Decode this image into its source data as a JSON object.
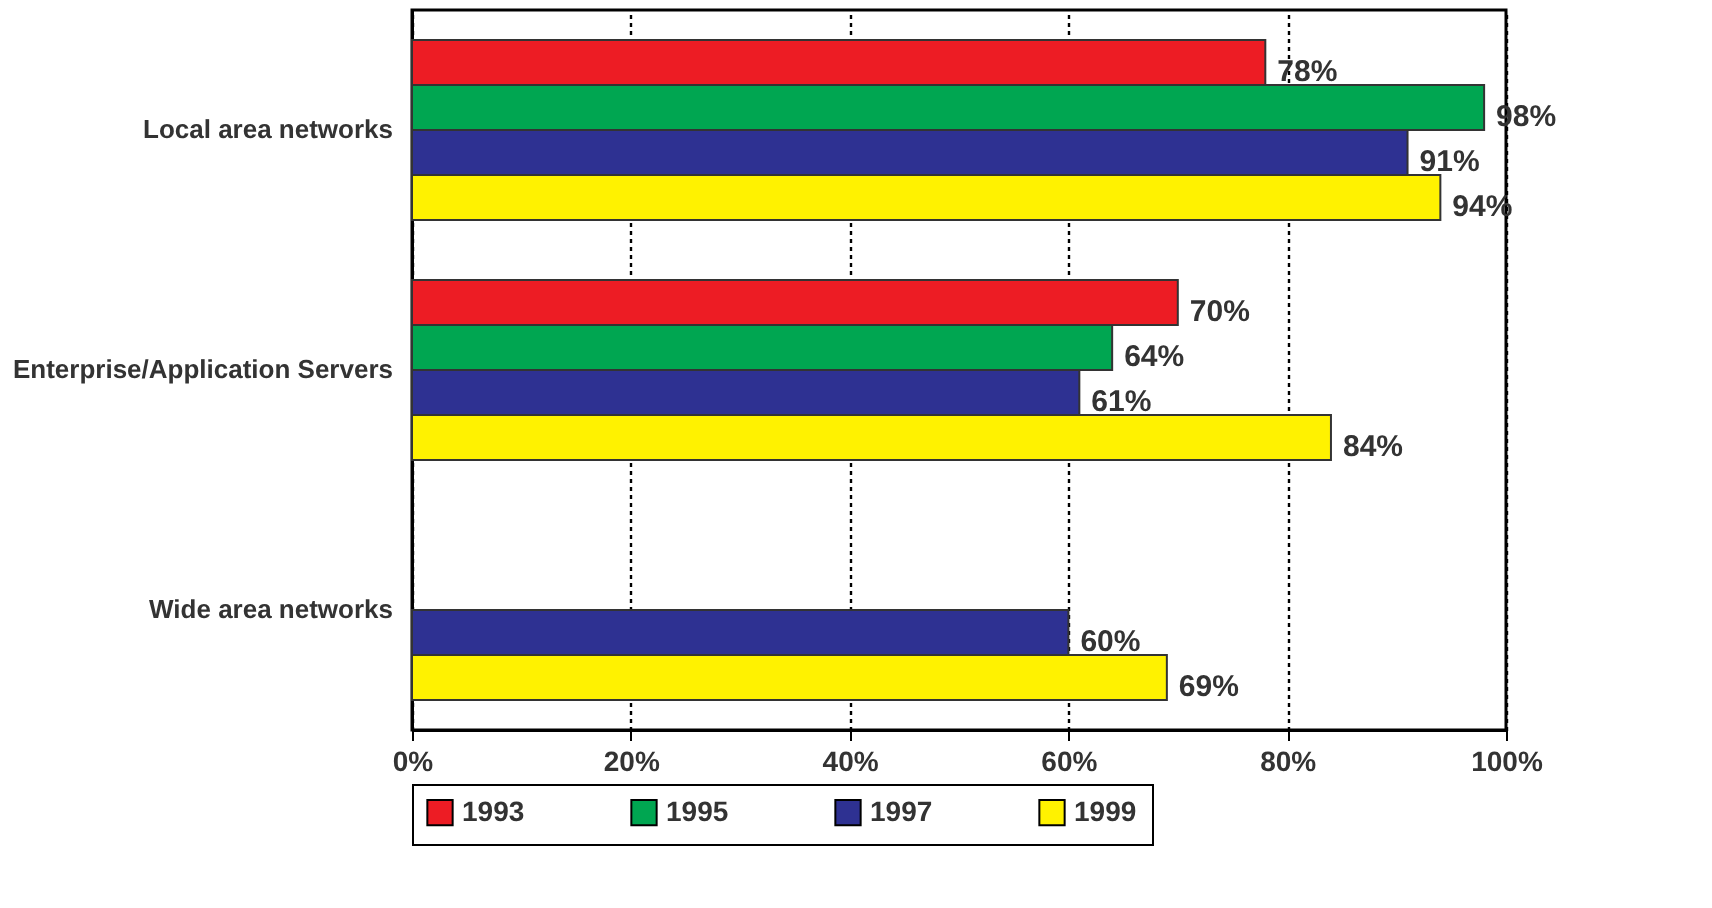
{
  "chart_data": {
    "type": "bar",
    "orientation": "horizontal",
    "categories": [
      "Local area networks",
      "Enterprise/Application Servers",
      "Wide area networks"
    ],
    "series": [
      {
        "name": "1993",
        "color": "#ed1c24",
        "values": [
          78,
          70,
          null
        ],
        "value_labels": [
          "78%",
          "70%",
          null
        ]
      },
      {
        "name": "1995",
        "color": "#00a651",
        "values": [
          98,
          64,
          null
        ],
        "value_labels": [
          "98%",
          "64%",
          null
        ]
      },
      {
        "name": "1997",
        "color": "#2e3192",
        "values": [
          91,
          61,
          60
        ],
        "value_labels": [
          "91%",
          "61%",
          "60%"
        ]
      },
      {
        "name": "1999",
        "color": "#fff200",
        "values": [
          94,
          84,
          69
        ],
        "value_labels": [
          "94%",
          "84%",
          "69%"
        ]
      }
    ],
    "xlim": [
      0,
      100
    ],
    "xticks": [
      {
        "value": 0,
        "label": "0%"
      },
      {
        "value": 20,
        "label": "20%"
      },
      {
        "value": 40,
        "label": "40%"
      },
      {
        "value": 60,
        "label": "60%"
      },
      {
        "value": 80,
        "label": "80%"
      },
      {
        "value": 100,
        "label": "100%"
      }
    ],
    "grid": "x",
    "legend": "bottom"
  }
}
